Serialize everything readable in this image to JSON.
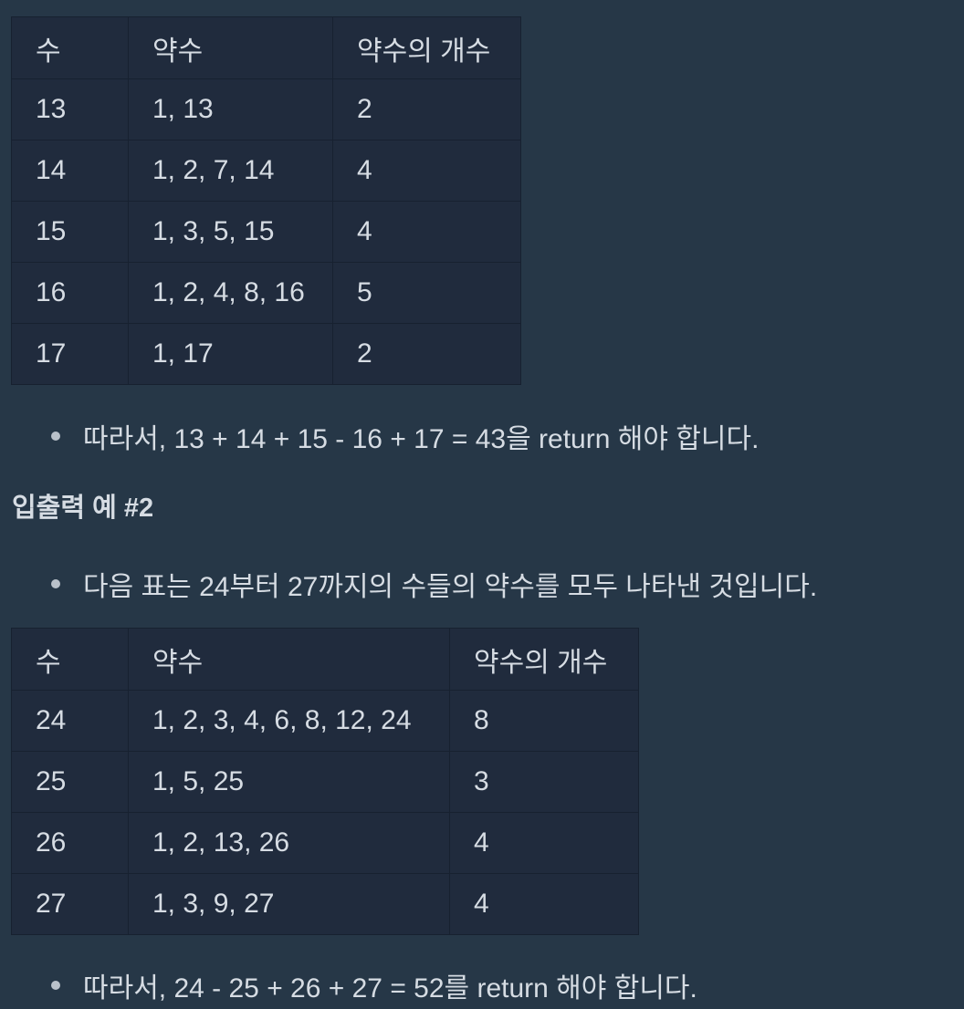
{
  "table1": {
    "headers": [
      "수",
      "약수",
      "약수의 개수"
    ],
    "rows": [
      [
        "13",
        "1, 13",
        "2"
      ],
      [
        "14",
        "1, 2, 7, 14",
        "4"
      ],
      [
        "15",
        "1, 3, 5, 15",
        "4"
      ],
      [
        "16",
        "1, 2, 4, 8, 16",
        "5"
      ],
      [
        "17",
        "1, 17",
        "2"
      ]
    ]
  },
  "bullet1": "따라서, 13 + 14 + 15 - 16 + 17 = 43을 return 해야 합니다.",
  "section2": {
    "heading": "입출력 예 #2",
    "bullet": "다음 표는 24부터 27까지의 수들의 약수를 모두 나타낸 것입니다."
  },
  "table2": {
    "headers": [
      "수",
      "약수",
      "약수의 개수"
    ],
    "rows": [
      [
        "24",
        "1, 2, 3, 4, 6, 8, 12, 24",
        "8"
      ],
      [
        "25",
        "1, 5, 25",
        "3"
      ],
      [
        "26",
        "1, 2, 13, 26",
        "4"
      ],
      [
        "27",
        "1, 3, 9, 27",
        "4"
      ]
    ]
  },
  "bullet3": "따라서, 24 - 25 + 26 + 27 = 52를 return 해야 합니다."
}
